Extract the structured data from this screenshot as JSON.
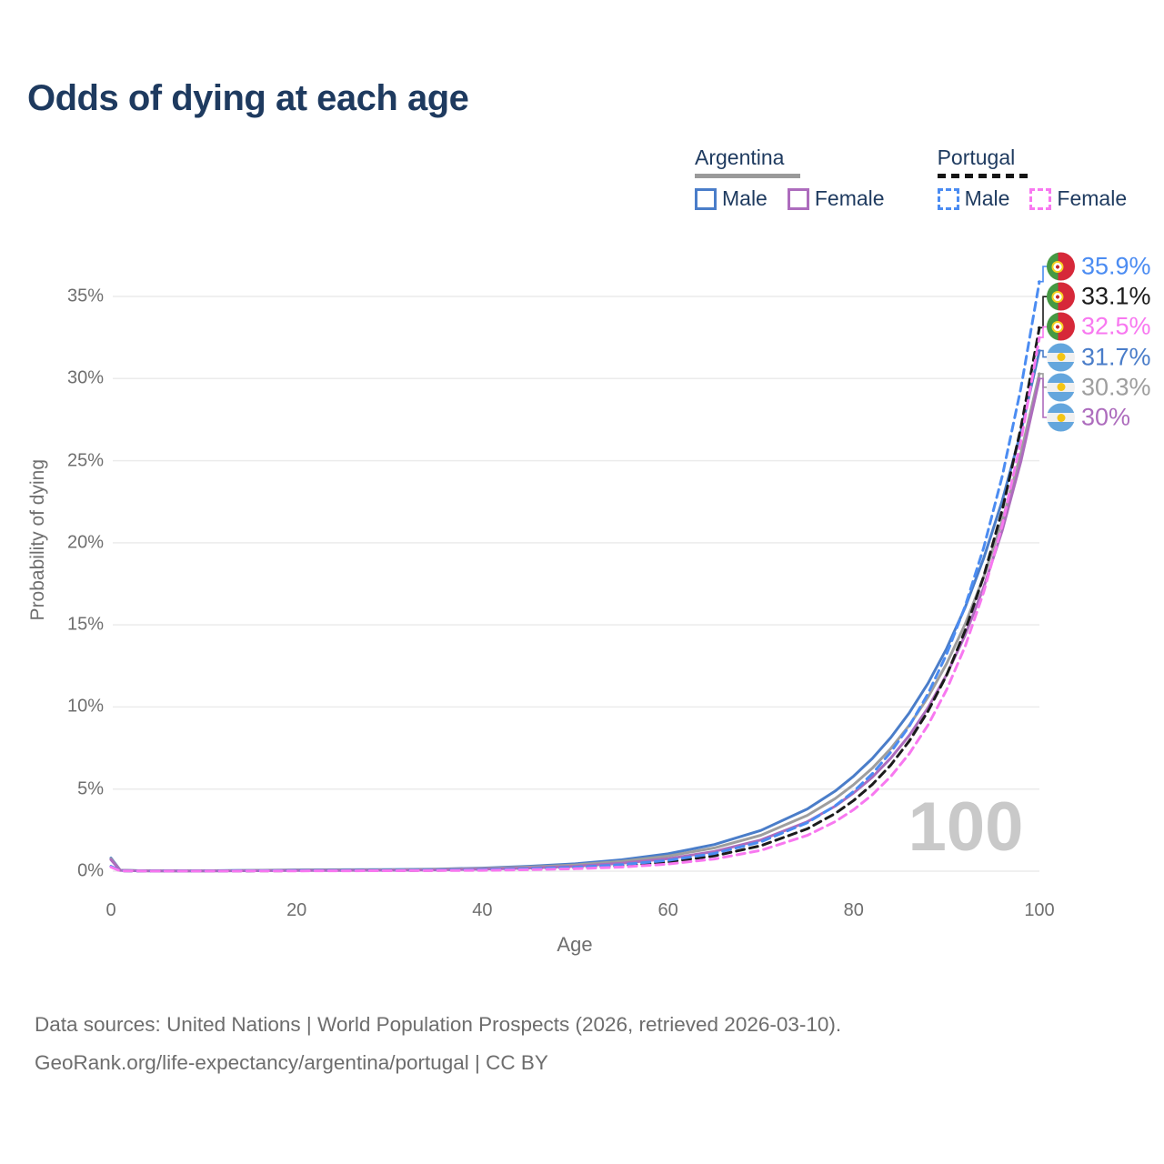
{
  "title": "Odds of dying at each age",
  "watermark": "100",
  "colors": {
    "arg_male": "#4a7dc9",
    "arg_female": "#ad6cbd",
    "arg_both": "#9e9e9e",
    "port_male": "#4b8cf2",
    "port_female": "#f878f0",
    "port_both": "#1b1b1b",
    "title_navy": "#1e3a5f",
    "axis_gray": "#6f6f6f",
    "gridline": "#ebebeb",
    "watermark_gray": "#c9c9c9"
  },
  "legend": {
    "groups": [
      {
        "name": "Argentina",
        "line_style": "solid",
        "items": [
          {
            "label": "Male",
            "color_key": "arg_male"
          },
          {
            "label": "Female",
            "color_key": "arg_female"
          }
        ]
      },
      {
        "name": "Portugal",
        "line_style": "dashed",
        "items": [
          {
            "label": "Male",
            "color_key": "port_male"
          },
          {
            "label": "Female",
            "color_key": "port_female"
          }
        ]
      }
    ]
  },
  "chart_data": {
    "type": "line",
    "title": "Odds of dying at each age",
    "xlabel": "Age",
    "ylabel": "Probability of dying",
    "xlim": [
      0,
      100
    ],
    "ylim": [
      0,
      37
    ],
    "grid": "horizontal",
    "legend_position": "top-right",
    "x_ticks": [
      {
        "v": 0,
        "label": "0"
      },
      {
        "v": 20,
        "label": "20"
      },
      {
        "v": 40,
        "label": "40"
      },
      {
        "v": 60,
        "label": "60"
      },
      {
        "v": 80,
        "label": "80"
      },
      {
        "v": 100,
        "label": "100"
      }
    ],
    "y_ticks": [
      {
        "v": 0,
        "label": "0%"
      },
      {
        "v": 5,
        "label": "5%"
      },
      {
        "v": 10,
        "label": "10%"
      },
      {
        "v": 15,
        "label": "15%"
      },
      {
        "v": 20,
        "label": "20%"
      },
      {
        "v": 25,
        "label": "25%"
      },
      {
        "v": 30,
        "label": "30%"
      },
      {
        "v": 35,
        "label": "35%"
      }
    ],
    "x": [
      0,
      1,
      3,
      5,
      10,
      15,
      20,
      25,
      30,
      35,
      40,
      45,
      50,
      55,
      60,
      65,
      70,
      75,
      78,
      80,
      82,
      84,
      86,
      88,
      90,
      92,
      94,
      96,
      98,
      100
    ],
    "series": [
      {
        "id": "argentina-male",
        "name": "Argentina Male",
        "country": "Argentina",
        "sex": "Male",
        "color_key": "arg_male",
        "dash": false,
        "end_value_pct": 31.7,
        "values": [
          0.8,
          0.06,
          0.03,
          0.02,
          0.02,
          0.05,
          0.08,
          0.09,
          0.1,
          0.13,
          0.19,
          0.3,
          0.45,
          0.69,
          1.06,
          1.62,
          2.48,
          3.79,
          4.88,
          5.79,
          6.86,
          8.14,
          9.66,
          11.44,
          13.55,
          16.06,
          19.05,
          22.58,
          26.75,
          31.7
        ]
      },
      {
        "id": "argentina-both",
        "name": "Argentina Both sexes",
        "country": "Argentina",
        "sex": "Both",
        "color_key": "arg_both",
        "dash": false,
        "end_value_pct": 30.3,
        "values": [
          0.75,
          0.055,
          0.027,
          0.018,
          0.018,
          0.04,
          0.06,
          0.07,
          0.08,
          0.11,
          0.16,
          0.25,
          0.38,
          0.59,
          0.92,
          1.42,
          2.19,
          3.4,
          4.42,
          5.27,
          6.27,
          7.47,
          8.9,
          10.6,
          12.63,
          15.04,
          17.92,
          21.35,
          25.44,
          30.3
        ]
      },
      {
        "id": "argentina-female",
        "name": "Argentina Female",
        "country": "Argentina",
        "sex": "Female",
        "color_key": "arg_female",
        "dash": false,
        "end_value_pct": 30.0,
        "values": [
          0.7,
          0.05,
          0.022,
          0.015,
          0.015,
          0.03,
          0.04,
          0.045,
          0.055,
          0.08,
          0.12,
          0.19,
          0.3,
          0.48,
          0.76,
          1.2,
          1.9,
          3.01,
          3.96,
          4.77,
          5.72,
          6.89,
          8.28,
          9.96,
          11.96,
          14.37,
          17.28,
          20.76,
          24.95,
          30.0
        ]
      },
      {
        "id": "portugal-both",
        "name": "Portugal Both sexes",
        "country": "Portugal",
        "sex": "Both",
        "color_key": "port_both",
        "dash": true,
        "end_value_pct": 33.1,
        "values": [
          0.28,
          0.02,
          0.012,
          0.009,
          0.009,
          0.016,
          0.025,
          0.03,
          0.037,
          0.05,
          0.073,
          0.12,
          0.2,
          0.34,
          0.56,
          0.93,
          1.55,
          2.58,
          3.51,
          4.31,
          5.28,
          6.47,
          7.94,
          9.74,
          11.93,
          14.64,
          17.95,
          22.0,
          26.99,
          33.1
        ]
      },
      {
        "id": "portugal-male",
        "name": "Portugal Male",
        "country": "Portugal",
        "sex": "Male",
        "color_key": "port_male",
        "dash": true,
        "end_value_pct": 35.9,
        "values": [
          0.3,
          0.022,
          0.013,
          0.01,
          0.01,
          0.02,
          0.035,
          0.04,
          0.05,
          0.065,
          0.09,
          0.15,
          0.24,
          0.4,
          0.66,
          1.08,
          1.79,
          2.95,
          3.98,
          4.86,
          5.93,
          7.25,
          8.85,
          10.81,
          13.21,
          16.13,
          19.7,
          24.07,
          29.4,
          35.9
        ]
      },
      {
        "id": "portugal-female",
        "name": "Portugal Female",
        "country": "Portugal",
        "sex": "Female",
        "color_key": "port_female",
        "dash": true,
        "end_value_pct": 32.5,
        "values": [
          0.25,
          0.018,
          0.01,
          0.008,
          0.008,
          0.012,
          0.016,
          0.02,
          0.026,
          0.036,
          0.05,
          0.086,
          0.15,
          0.25,
          0.43,
          0.74,
          1.27,
          2.18,
          3.02,
          3.75,
          4.65,
          5.77,
          7.17,
          8.9,
          11.04,
          13.69,
          16.99,
          21.09,
          26.18,
          32.5
        ]
      }
    ]
  },
  "end_labels": [
    {
      "country": "Portugal",
      "series": "Portugal Male",
      "value": "35.9%",
      "color_key": "port_male",
      "tip_pct": 35.9
    },
    {
      "country": "Portugal",
      "series": "Portugal Both sexes",
      "value": "33.1%",
      "color_key": "port_both",
      "tip_pct": 33.1
    },
    {
      "country": "Portugal",
      "series": "Portugal Female",
      "value": "32.5%",
      "color_key": "port_female",
      "tip_pct": 32.5
    },
    {
      "country": "Argentina",
      "series": "Argentina Male",
      "value": "31.7%",
      "color_key": "arg_male",
      "tip_pct": 31.7
    },
    {
      "country": "Argentina",
      "series": "Argentina Both sexes",
      "value": "30.3%",
      "color_key": "arg_both",
      "tip_pct": 30.3
    },
    {
      "country": "Argentina",
      "series": "Argentina Female",
      "value": "30%",
      "color_key": "arg_female",
      "tip_pct": 30.0
    }
  ],
  "footer": {
    "line1": "Data sources: United Nations | World Population Prospects (2026, retrieved 2026-03-10).",
    "line2": "GeoRank.org/life-expectancy/argentina/portugal | CC BY"
  }
}
